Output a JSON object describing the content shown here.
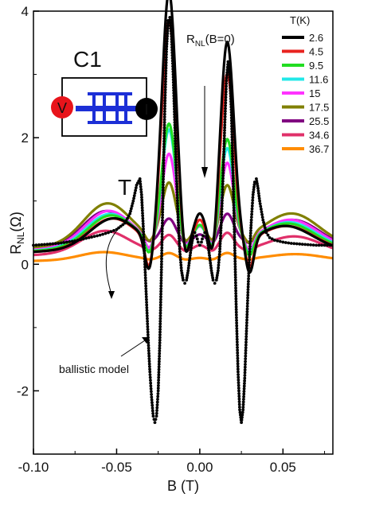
{
  "chart_data": {
    "type": "line",
    "xlabel": "B (T)",
    "ylabel": "R",
    "ylabel_sub": "NL",
    "ylabel_unit": "(Ω)",
    "xlim": [
      -0.1,
      0.08
    ],
    "ylim": [
      -3,
      4
    ],
    "xticks": [
      -0.1,
      -0.05,
      0.0,
      0.05
    ],
    "xtick_labels": [
      "-0.10",
      "-0.05",
      "0.00",
      "0.05"
    ],
    "yticks": [
      -2,
      0,
      2,
      4
    ],
    "ytick_labels": [
      "-2",
      "0",
      "2",
      "4"
    ],
    "grid": false,
    "legend": {
      "title": "T(K)",
      "position": "top-right"
    },
    "annotations": {
      "device_label": "C1",
      "v_label": "V",
      "i_label": "I",
      "rnl_label": "R",
      "rnl_sub": "NL",
      "rnl_suffix": "(B=0)",
      "t_label": "T",
      "ballistic_label": "ballistic model"
    },
    "series": [
      {
        "name": "2.6",
        "color": "#000000",
        "peak_l": 4.0,
        "peak_r": 3.2,
        "center": 0.5,
        "base": 0.3
      },
      {
        "name": "4.5",
        "color": "#e8231f",
        "peak_l": 3.55,
        "peak_r": 2.7,
        "center": 0.4,
        "base": 0.3
      },
      {
        "name": "9.5",
        "color": "#22dd22",
        "peak_l": 1.9,
        "peak_r": 1.65,
        "center": 0.3,
        "base": 0.32
      },
      {
        "name": "11.6",
        "color": "#22e8e8",
        "peak_l": 1.8,
        "peak_r": 1.5,
        "center": 0.28,
        "base": 0.33
      },
      {
        "name": "15",
        "color": "#ff33ff",
        "peak_l": 1.4,
        "peak_r": 1.25,
        "center": 0.25,
        "base": 0.35
      },
      {
        "name": "17.5",
        "color": "#808000",
        "peak_l": 0.9,
        "peak_r": 0.85,
        "center": 0.2,
        "base": 0.4
      },
      {
        "name": "25.5",
        "color": "#800080",
        "peak_l": 0.38,
        "peak_r": 0.45,
        "center": 0.12,
        "base": 0.35
      },
      {
        "name": "34.6",
        "color": "#e0306a",
        "peak_l": 0.25,
        "peak_r": 0.28,
        "center": 0.08,
        "base": 0.22
      },
      {
        "name": "36.7",
        "color": "#ff8c00",
        "peak_l": 0.1,
        "peak_r": 0.1,
        "center": 0.02,
        "base": 0.08
      }
    ],
    "ballistic_model": {
      "x": [
        -0.1,
        -0.095,
        -0.09,
        -0.085,
        -0.08,
        -0.075,
        -0.07,
        -0.065,
        -0.06,
        -0.055,
        -0.05,
        -0.045,
        -0.042,
        -0.04,
        -0.038,
        -0.036,
        -0.035,
        -0.034,
        -0.033,
        -0.032,
        -0.031,
        -0.03,
        -0.029,
        -0.028,
        -0.027,
        -0.026,
        -0.025,
        -0.024,
        -0.023,
        -0.022,
        -0.021,
        -0.02,
        -0.019,
        -0.018,
        -0.017,
        -0.016,
        -0.015,
        -0.014,
        -0.013,
        -0.012,
        -0.011,
        -0.01,
        -0.009,
        -0.008,
        -0.007,
        -0.006,
        -0.005,
        -0.004,
        -0.003,
        -0.002,
        -0.001,
        0.0,
        0.001,
        0.002,
        0.003,
        0.004,
        0.005,
        0.006,
        0.007,
        0.008,
        0.009,
        0.01,
        0.011,
        0.012,
        0.013,
        0.014,
        0.015,
        0.016,
        0.017,
        0.018,
        0.019,
        0.02,
        0.021,
        0.022,
        0.023,
        0.024,
        0.025,
        0.026,
        0.027,
        0.028,
        0.029,
        0.03,
        0.031,
        0.032,
        0.033,
        0.034,
        0.035,
        0.036,
        0.038,
        0.04,
        0.042,
        0.045,
        0.05,
        0.055,
        0.06,
        0.065,
        0.07,
        0.075,
        0.08
      ],
      "y": [
        0.3,
        0.31,
        0.32,
        0.33,
        0.35,
        0.37,
        0.4,
        0.43,
        0.46,
        0.5,
        0.55,
        0.65,
        0.8,
        1.0,
        1.25,
        1.35,
        1.1,
        0.6,
        0.0,
        -0.6,
        -1.2,
        -1.7,
        -2.1,
        -2.4,
        -2.5,
        -2.4,
        -2.0,
        -1.2,
        0.0,
        1.3,
        2.5,
        3.4,
        3.85,
        3.9,
        3.6,
        3.0,
        2.2,
        1.4,
        0.7,
        0.2,
        -0.1,
        -0.25,
        -0.3,
        -0.25,
        -0.1,
        0.1,
        0.3,
        0.45,
        0.5,
        0.45,
        0.35,
        0.3,
        0.35,
        0.45,
        0.5,
        0.45,
        0.3,
        0.1,
        -0.1,
        -0.25,
        -0.3,
        -0.25,
        -0.1,
        0.2,
        0.7,
        1.4,
        2.2,
        2.9,
        3.2,
        3.0,
        2.4,
        1.4,
        0.3,
        -0.8,
        -1.7,
        -2.3,
        -2.5,
        -2.3,
        -1.8,
        -1.1,
        -0.4,
        0.2,
        0.7,
        1.1,
        1.3,
        1.35,
        1.2,
        1.0,
        0.7,
        0.5,
        0.42,
        0.38,
        0.35,
        0.33,
        0.32,
        0.31,
        0.3,
        0.3,
        0.3
      ]
    }
  }
}
